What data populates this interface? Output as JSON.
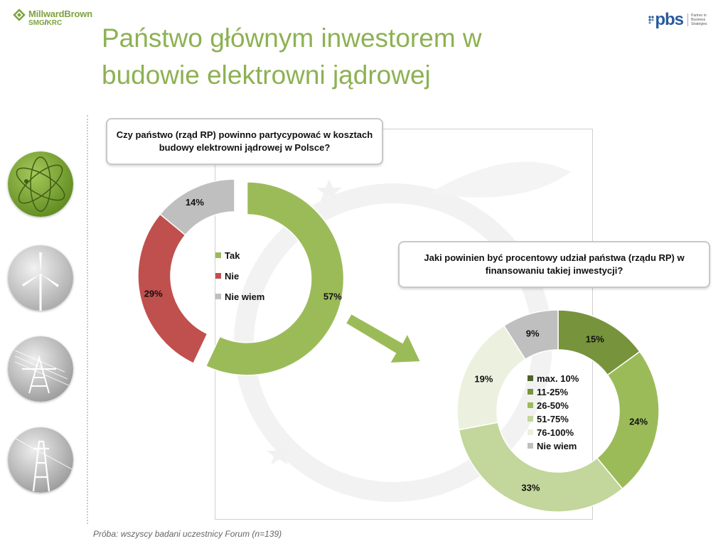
{
  "header": {
    "logo_left_brand": "MillwardBrown",
    "logo_left_sub_a": "SMG",
    "logo_left_sub_sep": "/",
    "logo_left_sub_b": "KRC",
    "logo_right": "pbs",
    "logo_right_tagline": "Partner in Business Strategies",
    "title": "Państwo głównym inwestorem w budowie elektrowni jądrowej"
  },
  "callouts": {
    "q1": "Czy państwo (rząd RP) powinno partycypować w kosztach budowy elektrowni jądrowej w Polsce?",
    "q2": "Jaki powinien być procentowy udział państwa (rządu RP) w finansowaniu takiej inwestycji?"
  },
  "footnote": "Próba: wszyscy badani uczestnicy Forum (n=139)",
  "chart_data": [
    {
      "type": "pie",
      "variant": "donut",
      "title": "Czy państwo (rząd RP) powinno partycypować w kosztach budowy elektrowni jądrowej w Polsce?",
      "categories": [
        "Tak",
        "Nie",
        "Nie wiem"
      ],
      "values": [
        57,
        29,
        14
      ],
      "labels": [
        "57%",
        "29%",
        "14%"
      ],
      "colors": [
        "#9bbb59",
        "#c0504d",
        "#bfbfbf"
      ],
      "exploded": "Tak",
      "legend": "center"
    },
    {
      "type": "pie",
      "variant": "donut",
      "title": "Jaki powinien być procentowy udział państwa (rządu RP) w finansowaniu takiej inwestycji?",
      "categories": [
        "max. 10%",
        "11-25%",
        "26-50%",
        "51-75%",
        "76-100%",
        "Nie wiem"
      ],
      "values": [
        0,
        15,
        24,
        33,
        19,
        9
      ],
      "labels": [
        "0%",
        "15%",
        "24%",
        "33%",
        "19%",
        "9%"
      ],
      "colors": [
        "#4f6228",
        "#77933c",
        "#9bbb59",
        "#c3d69b",
        "#ebf1de",
        "#bfbfbf"
      ],
      "legend": "center"
    }
  ]
}
